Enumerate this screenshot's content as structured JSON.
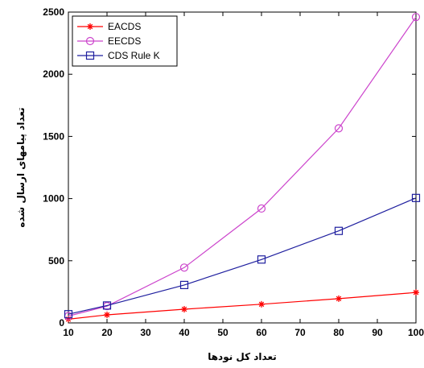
{
  "chart_data": {
    "type": "line",
    "title": "",
    "xlabel": "تعداد کل نودها",
    "ylabel": "تعداد پیامهای ارسال شده",
    "xlim": [
      10,
      100
    ],
    "ylim": [
      0,
      2500
    ],
    "xticks": [
      10,
      20,
      30,
      40,
      50,
      60,
      70,
      80,
      90,
      100
    ],
    "yticks": [
      0,
      500,
      1000,
      1500,
      2000,
      2500
    ],
    "grid": false,
    "legend": "top-left",
    "x": [
      10,
      20,
      40,
      60,
      80,
      100
    ],
    "series": [
      {
        "name": "EACDS",
        "values": [
          30,
          65,
          110,
          150,
          195,
          245
        ],
        "color": "#ff0000",
        "marker": "star"
      },
      {
        "name": "EECDS",
        "values": [
          55,
          135,
          445,
          920,
          1565,
          2460
        ],
        "color": "#cc44cc",
        "marker": "circle"
      },
      {
        "name": "CDS Rule K",
        "values": [
          70,
          140,
          305,
          510,
          740,
          1005
        ],
        "color": "#1f1f9f",
        "marker": "square"
      }
    ]
  }
}
